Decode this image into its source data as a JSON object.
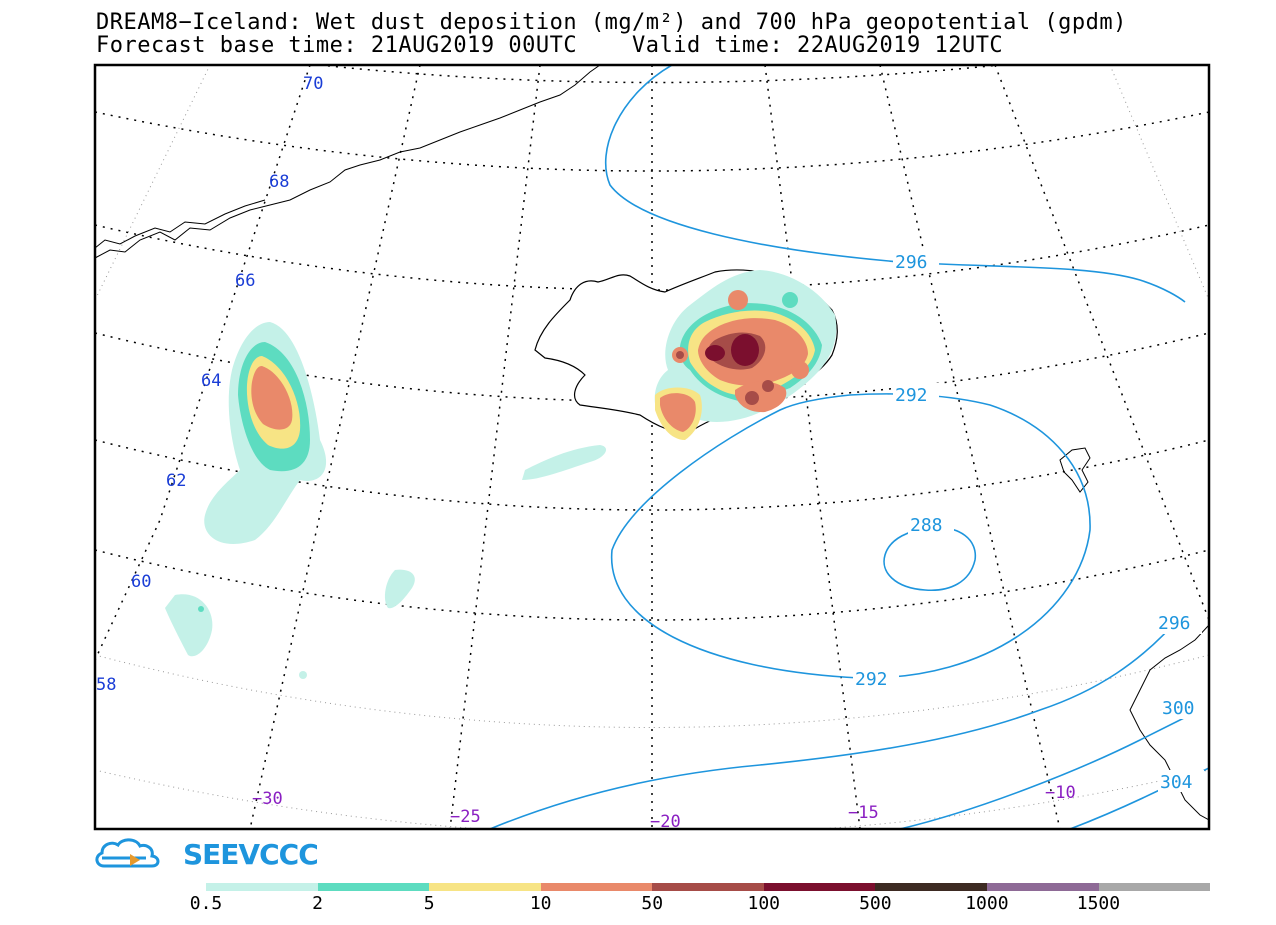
{
  "title": {
    "line1": "DREAM8−Iceland: Wet dust deposition (mg/m²) and 700 hPa geopotential (gpdm)",
    "line2": "Forecast base time: 21AUG2019 00UTC    Valid time: 22AUG2019 12UTC"
  },
  "logo": {
    "text": "SEEVCCC",
    "icon": "cloud-logo-icon",
    "color": "#1e95dd"
  },
  "latitude_labels": [
    "70",
    "68",
    "66",
    "64",
    "62",
    "60",
    "58"
  ],
  "longitude_labels": [
    "−30",
    "−25",
    "−20",
    "−15",
    "−10"
  ],
  "contours": [
    {
      "value": "296",
      "label": "296"
    },
    {
      "value": "292",
      "label": "292"
    },
    {
      "value": "288",
      "label": "288"
    },
    {
      "value": "292b",
      "label": "292"
    },
    {
      "value": "296b",
      "label": "296"
    },
    {
      "value": "300",
      "label": "300"
    },
    {
      "value": "304",
      "label": "304"
    }
  ],
  "colorbar": {
    "levels": [
      "0.5",
      "2",
      "5",
      "10",
      "50",
      "100",
      "500",
      "1000",
      "1500"
    ],
    "colors": [
      "#c4f1e8",
      "#5ddcc0",
      "#f7e485",
      "#e9896a",
      "#a64c48",
      "#7b0f2e",
      "#3d2a22",
      "#8e6a96",
      "#a8a8a8"
    ]
  },
  "colors": {
    "lat_label": "#1a3dd6",
    "lon_label": "#8a1fc2",
    "contour": "#1e95dd"
  }
}
